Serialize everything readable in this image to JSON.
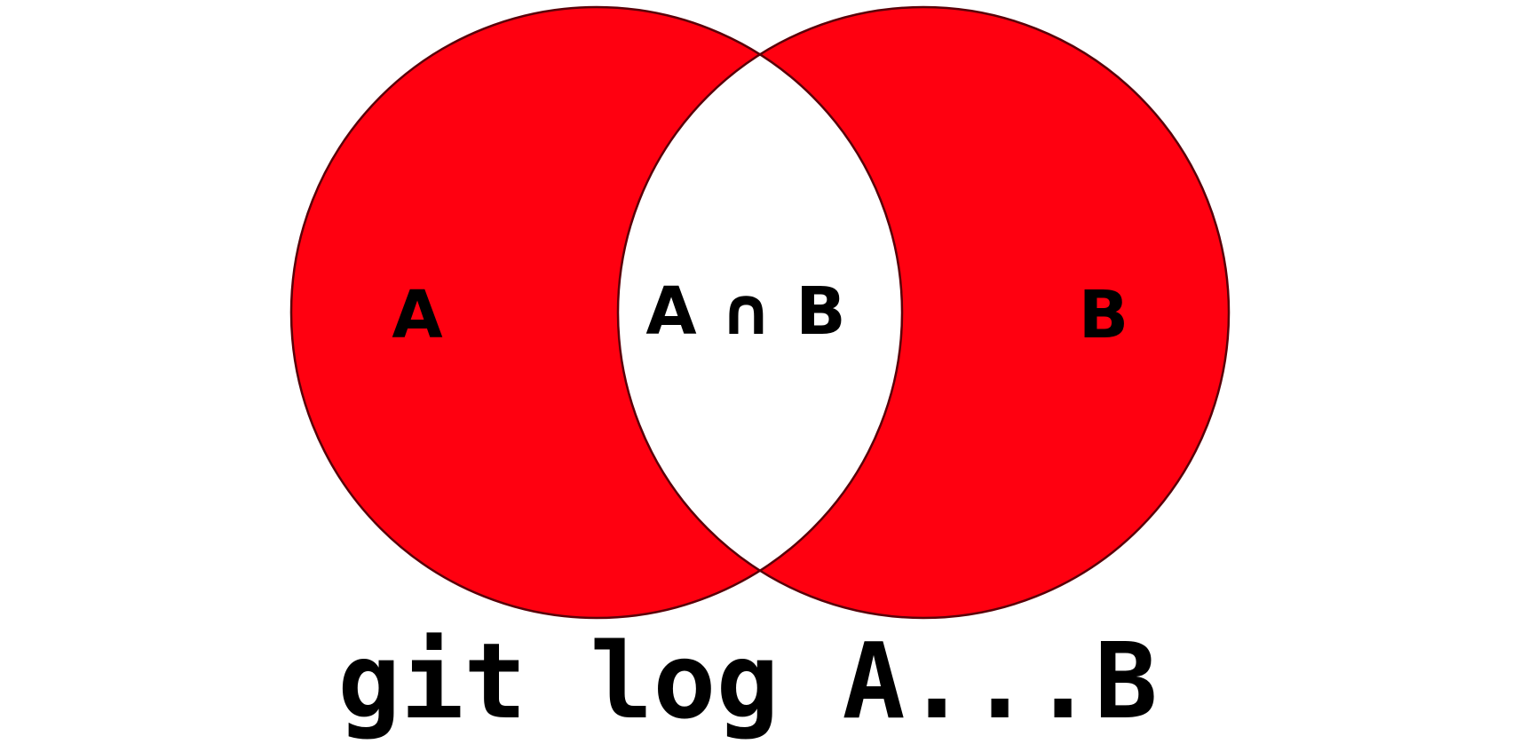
{
  "diagram": {
    "type": "venn",
    "sets": [
      {
        "name": "A",
        "label": "A",
        "highlighted": true
      },
      {
        "name": "B",
        "label": "B",
        "highlighted": true
      }
    ],
    "intersection": {
      "label": "A ∩ B",
      "highlighted": false
    },
    "highlight_color": "#ff0010",
    "outline_color": "#5a0008",
    "background_color": "#ffffff"
  },
  "caption": "git log A...B"
}
